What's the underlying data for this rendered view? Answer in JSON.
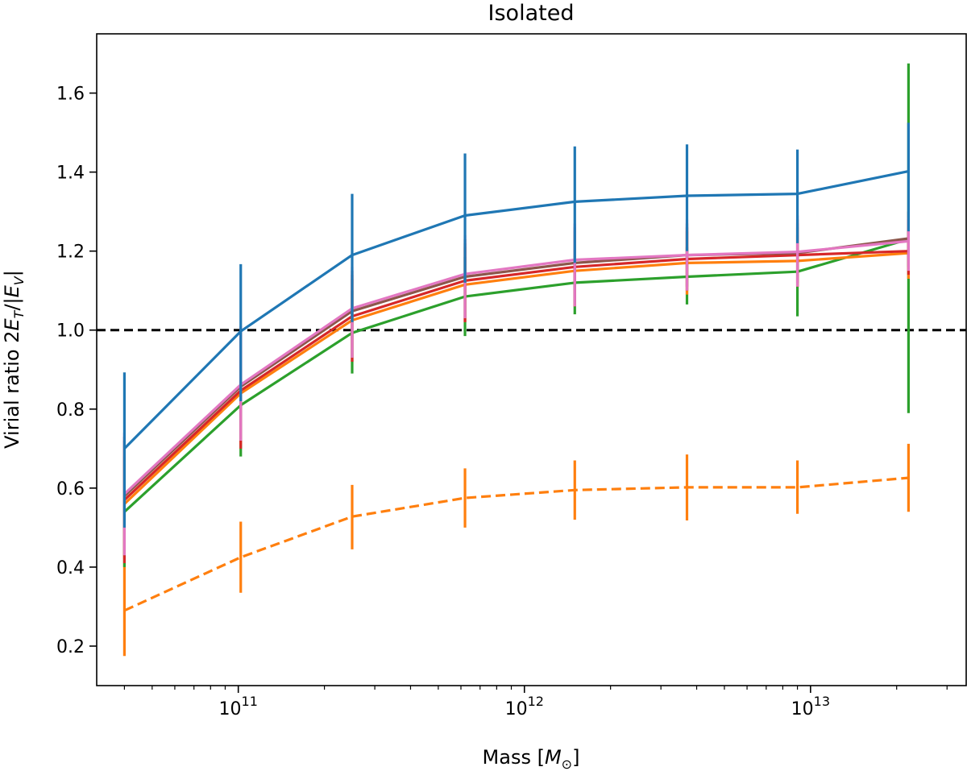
{
  "chart_data": {
    "type": "line",
    "title": "Isolated",
    "xlabel_text": "Mass",
    "xlabel_unit_symbol": "M",
    "xlabel_unit_sub": "⊙",
    "ylabel_text": "Virial ratio 2",
    "ylabel_ET": "E",
    "ylabel_ET_sub": "T",
    "ylabel_EV": "E",
    "ylabel_EV_sub": "V",
    "xscale": "log",
    "xlim": [
      32000000000.0,
      35000000000000.0
    ],
    "ylim": [
      0.1,
      1.75
    ],
    "x_tick_exponents": [
      "11",
      "12",
      "13"
    ],
    "x_tick_base": "10",
    "y_ticks": [
      0.2,
      0.4,
      0.6,
      0.8,
      1.0,
      1.2,
      1.4,
      1.6
    ],
    "y_tick_labels": [
      "0.2",
      "0.4",
      "0.6",
      "0.8",
      "1.0",
      "1.2",
      "1.4",
      "1.6"
    ],
    "reference_line": {
      "y": 1.0,
      "style": "dashed",
      "color": "#000000"
    },
    "x": [
      40000000000.0,
      102000000000.0,
      250000000000.0,
      620000000000.0,
      1500000000000.0,
      3700000000000.0,
      9000000000000.0,
      22000000000000.0
    ],
    "series": [
      {
        "name": "series-dashed-orange",
        "color": "#ff7f0e",
        "dashed": true,
        "values": [
          0.29,
          0.425,
          0.528,
          0.575,
          0.595,
          0.602,
          0.602,
          0.626
        ],
        "err_low": [
          0.175,
          0.335,
          0.445,
          0.5,
          0.52,
          0.518,
          0.535,
          0.54
        ],
        "err_high": [
          0.41,
          0.515,
          0.608,
          0.65,
          0.67,
          0.685,
          0.67,
          0.712
        ]
      },
      {
        "name": "series-green",
        "color": "#2ca02c",
        "dashed": false,
        "values": [
          0.54,
          0.81,
          0.993,
          1.085,
          1.12,
          1.135,
          1.148,
          1.23
        ],
        "err_low": [
          0.4,
          0.68,
          0.89,
          0.985,
          1.04,
          1.065,
          1.035,
          0.79
        ],
        "err_high": [
          0.68,
          0.94,
          1.1,
          1.185,
          1.2,
          1.21,
          1.26,
          1.675
        ]
      },
      {
        "name": "series-orange",
        "color": "#ff7f0e",
        "dashed": false,
        "values": [
          0.56,
          0.84,
          1.025,
          1.115,
          1.15,
          1.17,
          1.175,
          1.195
        ],
        "err_low": [
          0.42,
          0.71,
          0.92,
          1.02,
          1.06,
          1.09,
          1.11,
          1.13
        ],
        "err_high": [
          0.7,
          0.97,
          1.13,
          1.21,
          1.24,
          1.25,
          1.24,
          1.26
        ]
      },
      {
        "name": "series-red",
        "color": "#d62728",
        "dashed": false,
        "values": [
          0.57,
          0.847,
          1.035,
          1.125,
          1.16,
          1.18,
          1.19,
          1.2
        ],
        "err_low": [
          0.41,
          0.7,
          0.92,
          1.02,
          1.06,
          1.1,
          1.11,
          1.14
        ],
        "err_high": [
          0.72,
          0.99,
          1.14,
          1.22,
          1.25,
          1.26,
          1.27,
          1.28
        ]
      },
      {
        "name": "series-brown",
        "color": "#8c564b",
        "dashed": false,
        "values": [
          0.58,
          0.857,
          1.048,
          1.135,
          1.17,
          1.19,
          1.195,
          1.232
        ],
        "err_low": [
          0.43,
          0.72,
          0.93,
          1.03,
          1.07,
          1.11,
          1.12,
          1.16
        ],
        "err_high": [
          0.73,
          1.0,
          1.15,
          1.23,
          1.26,
          1.27,
          1.28,
          1.3
        ]
      },
      {
        "name": "series-pink",
        "color": "#e377c2",
        "dashed": false,
        "values": [
          0.585,
          0.862,
          1.055,
          1.142,
          1.178,
          1.19,
          1.198,
          1.225
        ],
        "err_low": [
          0.43,
          0.72,
          0.93,
          1.03,
          1.06,
          1.1,
          1.11,
          1.15
        ],
        "err_high": [
          0.74,
          1.01,
          1.16,
          1.24,
          1.27,
          1.28,
          1.29,
          1.285
        ]
      },
      {
        "name": "series-blue",
        "color": "#1f77b4",
        "dashed": false,
        "values": [
          0.7,
          0.997,
          1.19,
          1.29,
          1.325,
          1.34,
          1.345,
          1.402
        ],
        "err_low": [
          0.5,
          0.82,
          1.02,
          1.12,
          1.17,
          1.2,
          1.22,
          1.25
        ],
        "err_high": [
          0.893,
          1.167,
          1.345,
          1.447,
          1.465,
          1.47,
          1.457,
          1.525
        ]
      }
    ]
  }
}
